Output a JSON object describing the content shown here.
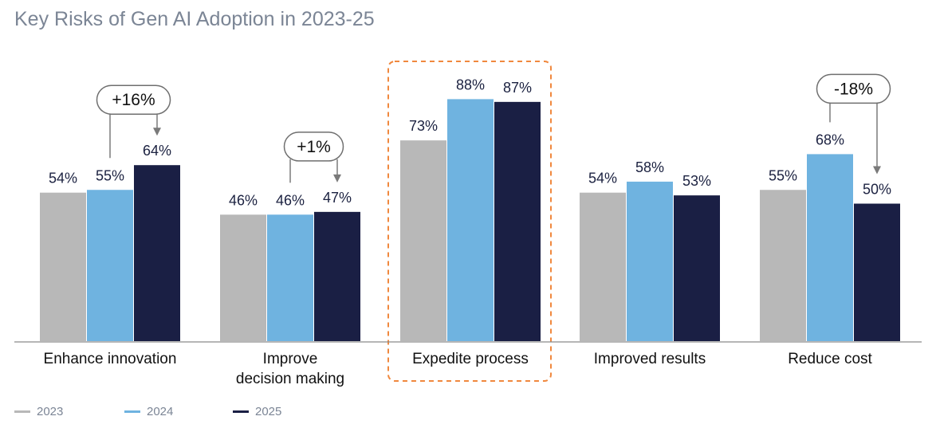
{
  "title": "Key Risks of Gen AI Adoption in 2023-25",
  "colors": {
    "2023": "#b8b8b8",
    "2024": "#6fb3e0",
    "2025": "#1a1f44",
    "highlight": "#f0883e",
    "annotation": "#7a7a7a"
  },
  "chart_data": {
    "type": "bar",
    "categories": [
      "Enhance innovation",
      "Improve\ndecision making",
      "Expedite process",
      "Improved results",
      "Reduce cost"
    ],
    "series": [
      {
        "name": "2023",
        "values": [
          54,
          46,
          73,
          54,
          55
        ]
      },
      {
        "name": "2024",
        "values": [
          55,
          46,
          88,
          58,
          68
        ]
      },
      {
        "name": "2025",
        "values": [
          64,
          47,
          87,
          53,
          50
        ]
      }
    ],
    "value_labels": [
      [
        "54%",
        "55%",
        "64%"
      ],
      [
        "46%",
        "46%",
        "47%"
      ],
      [
        "73%",
        "88%",
        "87%"
      ],
      [
        "54%",
        "58%",
        "53%"
      ],
      [
        "55%",
        "68%",
        "50%"
      ]
    ],
    "ylim": [
      0,
      100
    ],
    "grid": false,
    "legend": "bottom-left",
    "highlighted_category": "Expedite process",
    "annotations": [
      {
        "category": "Enhance innovation",
        "text": "+16%",
        "from_series": "2024",
        "to_series": "2025"
      },
      {
        "category": "Improve\ndecision making",
        "text": "+1%",
        "from_series": "2024",
        "to_series": "2025"
      },
      {
        "category": "Reduce cost",
        "text": "-18%",
        "from_series": "2024",
        "to_series": "2025"
      }
    ]
  },
  "legend": {
    "items": [
      "2023",
      "2024",
      "2025"
    ]
  }
}
